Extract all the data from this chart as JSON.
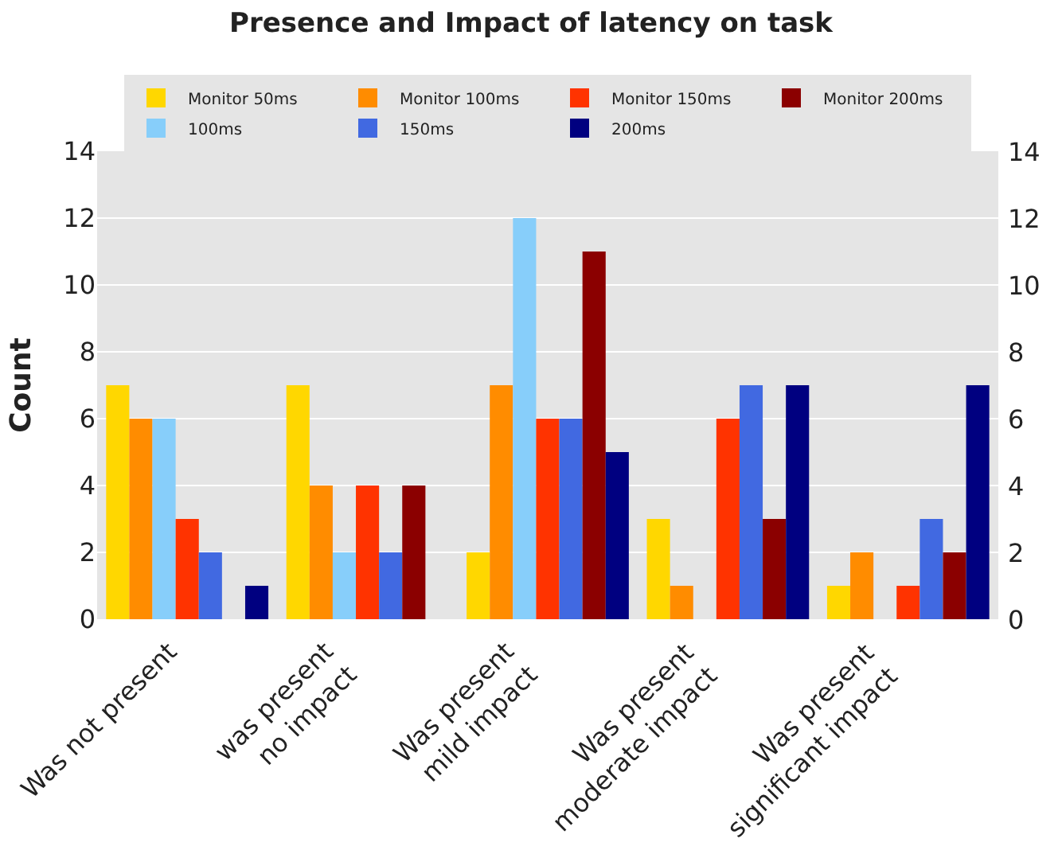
{
  "chart_data": {
    "type": "bar",
    "title": "Presence and Impact of latency on task",
    "ylabel": "Count",
    "categories": [
      "Was not present",
      "was present\nno impact",
      "Was present\nmild impact",
      "Was present\nmoderate impact",
      "Was present\nsignificant impact"
    ],
    "series": [
      {
        "name": "Monitor 50ms",
        "color": "#ffd700",
        "values": [
          7,
          7,
          2,
          3,
          1
        ]
      },
      {
        "name": "Monitor 100ms",
        "color": "#ff8c00",
        "values": [
          6,
          4,
          7,
          1,
          2
        ]
      },
      {
        "name": "100ms",
        "color": "#87cefa",
        "values": [
          6,
          2,
          12,
          0,
          0
        ]
      },
      {
        "name": "Monitor 150ms",
        "color": "#ff3300",
        "values": [
          3,
          4,
          6,
          6,
          1
        ]
      },
      {
        "name": "150ms",
        "color": "#4169e1",
        "values": [
          2,
          2,
          6,
          7,
          3
        ]
      },
      {
        "name": "Monitor 200ms",
        "color": "#8b0000",
        "values": [
          0,
          4,
          11,
          3,
          2
        ]
      },
      {
        "name": "200ms",
        "color": "#000080",
        "values": [
          1,
          0,
          5,
          7,
          7
        ]
      }
    ],
    "ylim": [
      0,
      14
    ],
    "yticks": [
      0,
      2,
      4,
      6,
      8,
      10,
      12,
      14
    ],
    "y2lim": [
      0,
      14
    ],
    "y2ticks": [
      0,
      2,
      4,
      6,
      8,
      10,
      12,
      14
    ],
    "grid": "y",
    "legend": "top"
  }
}
